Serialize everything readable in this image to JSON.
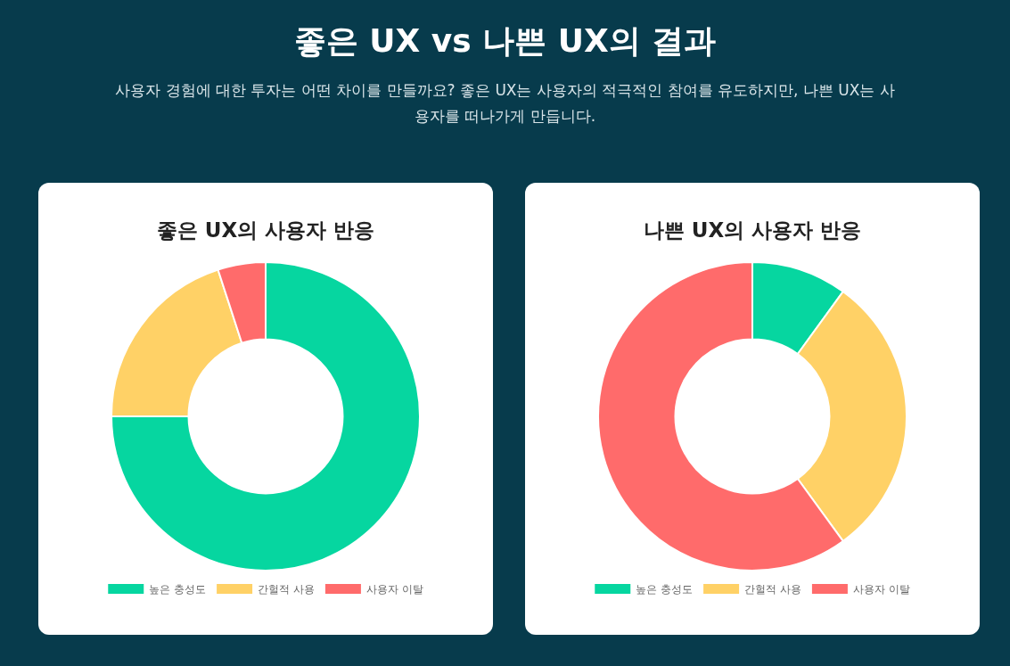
{
  "chart_data": [
    {
      "type": "other",
      "title": "좋은 UX vs 나쁜 UX의 결과",
      "subtitle": "사용자 경험에 대한 투자는 어떤 차이를 만들까요? 좋은 UX는 사용자의 적극적인 참여를 유도하지만, 나쁜 UX는 사용자를 떠나가게 만듭니다."
    },
    {
      "type": "donut",
      "title": "좋은 UX의 사용자 반응",
      "categories": [
        "높은 충성도",
        "간헐적 사용",
        "사용자 이탈"
      ],
      "values": [
        75,
        20,
        5
      ],
      "colors": [
        "#06d6a0",
        "#ffd166",
        "#ff6b6b"
      ],
      "legend": "bottom"
    },
    {
      "type": "donut",
      "title": "나쁜 UX의 사용자 반응",
      "categories": [
        "높은 충성도",
        "간헐적 사용",
        "사용자 이탈"
      ],
      "values": [
        10,
        30,
        60
      ],
      "colors": [
        "#06d6a0",
        "#ffd166",
        "#ff6b6b"
      ],
      "legend": "bottom"
    }
  ]
}
